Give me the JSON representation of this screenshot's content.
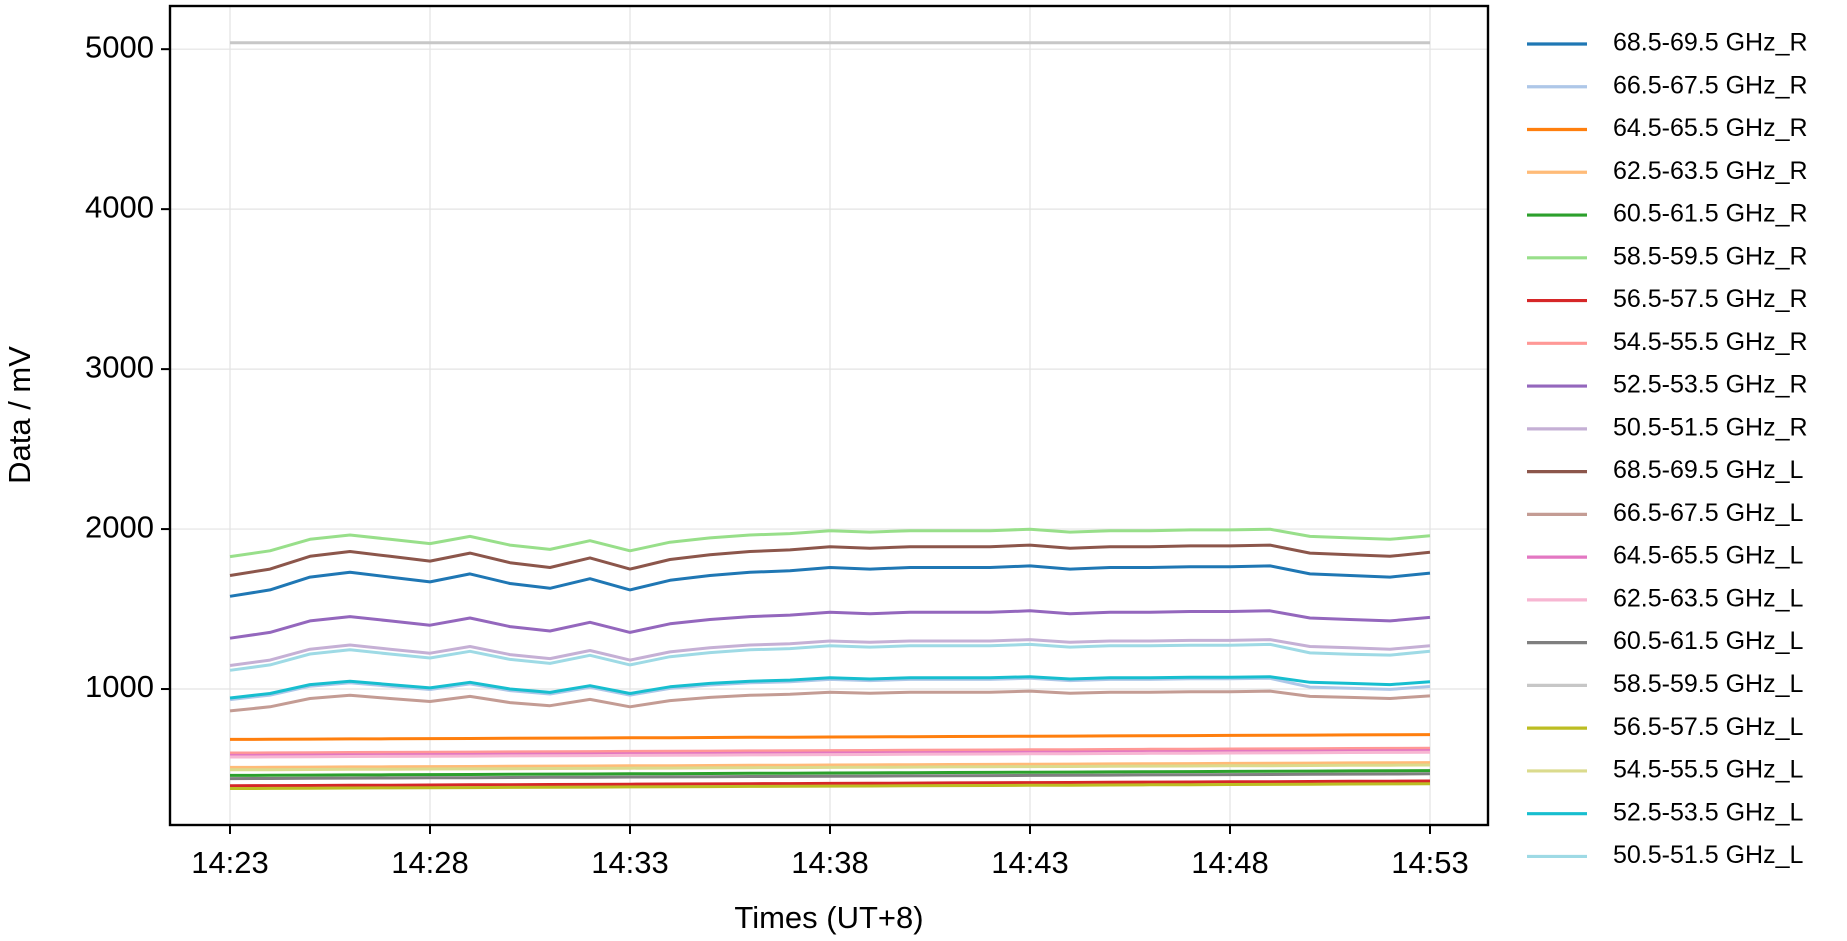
{
  "chart_data": {
    "type": "line",
    "xlabel": "Times (UT+8)",
    "ylabel": "Data / mV",
    "categories": [
      "14:23",
      null,
      null,
      null,
      null,
      "14:28",
      null,
      null,
      null,
      null,
      "14:33",
      null,
      null,
      null,
      null,
      "14:38",
      null,
      null,
      null,
      null,
      "14:43",
      null,
      null,
      null,
      null,
      "14:48",
      null,
      null,
      null,
      null,
      "14:53"
    ],
    "ylim": [
      150,
      5270
    ],
    "yticks": [
      1000,
      2000,
      3000,
      4000,
      5000
    ],
    "grid": true,
    "legend": "outside right",
    "series": [
      {
        "name": "68.5-69.5 GHz_R",
        "color": "#1f77b4",
        "values": [
          1580,
          1620,
          1700,
          1730,
          1700,
          1670,
          1720,
          1660,
          1630,
          1690,
          1620,
          1680,
          1710,
          1730,
          1740,
          1760,
          1750,
          1760,
          1760,
          1760,
          1770,
          1750,
          1760,
          1760,
          1765,
          1765,
          1770,
          1720,
          1710,
          1700,
          1725
        ]
      },
      {
        "name": "66.5-67.5 GHz_R",
        "color": "#aec7e8",
        "values": [
          934,
          962,
          1018,
          1039,
          1018,
          997,
          1032,
          990,
          969,
          1011,
          962,
          1004,
          1025,
          1039,
          1046,
          1060,
          1053,
          1060,
          1060,
          1060,
          1067,
          1053,
          1060,
          1060,
          1064,
          1064,
          1067,
          1012,
          1005,
          998,
          1016
        ]
      },
      {
        "name": "64.5-65.5 GHz_R",
        "color": "#ff7f0e",
        "values": [
          685,
          686,
          687,
          688,
          689,
          690,
          691,
          692,
          693,
          694,
          695,
          696,
          697,
          698,
          699,
          700,
          701,
          702,
          703,
          704,
          705,
          706,
          707,
          708,
          709,
          710,
          711,
          712,
          713,
          714,
          715
        ]
      },
      {
        "name": "62.5-63.5 GHz_R",
        "color": "#ffbb78",
        "values": [
          510,
          511,
          512,
          513,
          514,
          515,
          516,
          517,
          518,
          519,
          520,
          521,
          522,
          523,
          524,
          525,
          526,
          527,
          528,
          529,
          530,
          531,
          532,
          533,
          534,
          535,
          536,
          537,
          538,
          539,
          540
        ]
      },
      {
        "name": "60.5-61.5 GHz_R",
        "color": "#2ca02c",
        "values": [
          460,
          461,
          462,
          463,
          464,
          465,
          466,
          467,
          468,
          469,
          470,
          471,
          472,
          473,
          474,
          475,
          476,
          477,
          478,
          479,
          480,
          481,
          482,
          483,
          484,
          485,
          486,
          487,
          488,
          489,
          490
        ]
      },
      {
        "name": "58.5-59.5 GHz_R",
        "color": "#98df8a",
        "values": [
          1828,
          1864,
          1936,
          1963,
          1936,
          1909,
          1954,
          1900,
          1873,
          1927,
          1864,
          1918,
          1945,
          1963,
          1972,
          1990,
          1981,
          1990,
          1990,
          1990,
          1999,
          1981,
          1990,
          1990,
          1995,
          1995,
          1999,
          1954,
          1945,
          1936,
          1958
        ]
      },
      {
        "name": "56.5-57.5 GHz_R",
        "color": "#d62728",
        "values": [
          395,
          396,
          397,
          398,
          399,
          400,
          401,
          402,
          403,
          404,
          405,
          406,
          407,
          408,
          409,
          410,
          411,
          412,
          413,
          414,
          415,
          416,
          417,
          418,
          419,
          420,
          421,
          422,
          423,
          424,
          425
        ]
      },
      {
        "name": "54.5-55.5 GHz_R",
        "color": "#ff9896",
        "values": [
          600,
          601,
          602,
          603,
          604,
          605,
          606,
          607,
          608,
          609,
          610,
          611,
          612,
          613,
          614,
          615,
          616,
          617,
          618,
          619,
          620,
          621,
          622,
          623,
          624,
          625,
          626,
          627,
          628,
          629,
          630
        ]
      },
      {
        "name": "52.5-53.5 GHz_R",
        "color": "#9467bd",
        "values": [
          1318,
          1354,
          1426,
          1453,
          1426,
          1399,
          1444,
          1390,
          1363,
          1417,
          1354,
          1408,
          1435,
          1453,
          1462,
          1480,
          1471,
          1480,
          1480,
          1480,
          1489,
          1471,
          1480,
          1480,
          1485,
          1485,
          1489,
          1444,
          1435,
          1426,
          1448
        ]
      },
      {
        "name": "50.5-51.5 GHz_R",
        "color": "#c5b0d5",
        "values": [
          1147,
          1181,
          1249,
          1275,
          1249,
          1224,
          1266,
          1215,
          1190,
          1241,
          1181,
          1232,
          1258,
          1275,
          1283,
          1300,
          1292,
          1300,
          1300,
          1300,
          1309,
          1292,
          1300,
          1300,
          1304,
          1304,
          1309,
          1266,
          1258,
          1249,
          1270
        ]
      },
      {
        "name": "68.5-69.5 GHz_L",
        "color": "#8c564b",
        "values": [
          1710,
          1750,
          1830,
          1860,
          1830,
          1800,
          1850,
          1790,
          1760,
          1820,
          1750,
          1810,
          1840,
          1860,
          1870,
          1890,
          1880,
          1890,
          1890,
          1890,
          1900,
          1880,
          1890,
          1890,
          1895,
          1895,
          1900,
          1850,
          1840,
          1830,
          1855
        ]
      },
      {
        "name": "66.5-67.5 GHz_L",
        "color": "#c49c94",
        "values": [
          863,
          889,
          941,
          961,
          941,
          922,
          954,
          915,
          896,
          935,
          889,
          928,
          948,
          961,
          967,
          980,
          974,
          980,
          980,
          980,
          987,
          974,
          980,
          980,
          983,
          983,
          987,
          954,
          948,
          941,
          957
        ]
      },
      {
        "name": "64.5-65.5 GHz_L",
        "color": "#e377c2",
        "values": [
          585,
          586,
          587,
          588,
          589,
          590,
          591,
          592,
          593,
          594,
          595,
          596,
          597,
          598,
          599,
          600,
          601,
          602,
          603,
          604,
          605,
          606,
          607,
          608,
          609,
          610,
          611,
          612,
          613,
          614,
          615
        ]
      },
      {
        "name": "62.5-63.5 GHz_L",
        "color": "#f7b6d2",
        "values": [
          575,
          576,
          577,
          578,
          579,
          580,
          581,
          582,
          583,
          584,
          585,
          586,
          587,
          588,
          589,
          590,
          591,
          592,
          593,
          594,
          595,
          596,
          597,
          598,
          599,
          600,
          601,
          602,
          603,
          604,
          605
        ]
      },
      {
        "name": "60.5-61.5 GHz_L",
        "color": "#7f7f7f",
        "values": [
          440,
          441,
          442,
          443,
          444,
          445,
          446,
          447,
          448,
          449,
          450,
          451,
          452,
          453,
          454,
          455,
          456,
          457,
          458,
          459,
          460,
          461,
          462,
          463,
          464,
          465,
          466,
          467,
          468,
          469,
          470
        ]
      },
      {
        "name": "58.5-59.5 GHz_L",
        "color": "#c7c7c7",
        "values": [
          5040,
          5040,
          5040,
          5040,
          5040,
          5040,
          5040,
          5040,
          5040,
          5040,
          5040,
          5040,
          5040,
          5040,
          5040,
          5040,
          5040,
          5040,
          5040,
          5040,
          5040,
          5040,
          5040,
          5040,
          5040,
          5040,
          5040,
          5040,
          5040,
          5040,
          5040
        ]
      },
      {
        "name": "56.5-57.5 GHz_L",
        "color": "#bcbd22",
        "values": [
          378,
          379,
          380,
          381,
          382,
          383,
          384,
          385,
          386,
          387,
          388,
          389,
          390,
          391,
          392,
          393,
          394,
          395,
          396,
          397,
          398,
          399,
          400,
          401,
          402,
          403,
          404,
          405,
          406,
          407,
          408
        ]
      },
      {
        "name": "54.5-55.5 GHz_L",
        "color": "#dbdb8d",
        "values": [
          495,
          496,
          497,
          498,
          499,
          500,
          501,
          502,
          503,
          504,
          505,
          506,
          507,
          508,
          509,
          510,
          511,
          512,
          513,
          514,
          515,
          516,
          517,
          518,
          519,
          520,
          521,
          522,
          523,
          524,
          525
        ]
      },
      {
        "name": "52.5-53.5 GHz_L",
        "color": "#17becf",
        "values": [
          944,
          972,
          1028,
          1049,
          1028,
          1007,
          1042,
          1000,
          979,
          1021,
          972,
          1014,
          1035,
          1049,
          1056,
          1070,
          1063,
          1070,
          1070,
          1070,
          1077,
          1063,
          1070,
          1070,
          1074,
          1074,
          1077,
          1042,
          1035,
          1028,
          1046
        ]
      },
      {
        "name": "50.5-51.5 GHz_L",
        "color": "#9edae5",
        "values": [
          1117,
          1151,
          1219,
          1245,
          1219,
          1194,
          1236,
          1185,
          1160,
          1211,
          1151,
          1202,
          1228,
          1245,
          1253,
          1270,
          1262,
          1270,
          1270,
          1270,
          1279,
          1262,
          1270,
          1270,
          1274,
          1274,
          1279,
          1226,
          1218,
          1212,
          1236
        ]
      }
    ]
  }
}
